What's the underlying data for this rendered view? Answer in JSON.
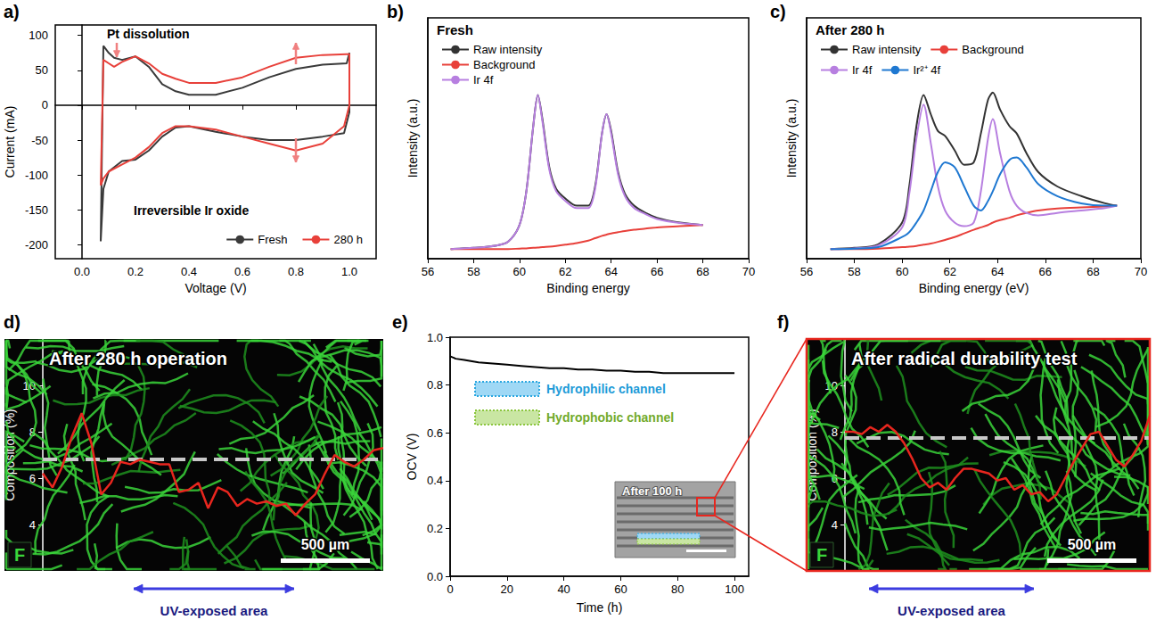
{
  "chart_data": [
    {
      "label": "a)",
      "type": "line",
      "x_label": "Voltage (V)",
      "y_label": "Current (mA)",
      "xlim": [
        -0.1,
        1.1
      ],
      "xticks": [
        {
          "value": 0,
          "label": "0.0"
        },
        0.2,
        0.4,
        0.6,
        0.8,
        {
          "value": 1,
          "label": "1.0"
        }
      ],
      "ylim": [
        -220,
        115
      ],
      "yticks": [
        -200,
        -150,
        -100,
        -50,
        0,
        50,
        100
      ],
      "legend": "lower right",
      "annotations": [
        "Pt dissolution",
        "Irreversible Ir oxide"
      ],
      "series": [
        {
          "name": "Fresh",
          "color": "#3a3a3a",
          "x": [
            0.07,
            0.08,
            0.1,
            0.12,
            0.15,
            0.2,
            0.25,
            0.3,
            0.35,
            0.4,
            0.5,
            0.6,
            0.7,
            0.8,
            0.9,
            0.99,
            1.0,
            1.0,
            0.98,
            0.9,
            0.8,
            0.7,
            0.6,
            0.5,
            0.4,
            0.35,
            0.3,
            0.25,
            0.2,
            0.15,
            0.1,
            0.08,
            0.07
          ],
          "values": [
            -195,
            85,
            75,
            68,
            65,
            70,
            55,
            30,
            20,
            15,
            15,
            25,
            40,
            52,
            58,
            60,
            75,
            -10,
            -40,
            -45,
            -50,
            -50,
            -45,
            -38,
            -30,
            -32,
            -45,
            -65,
            -78,
            -80,
            -95,
            -120,
            -195
          ]
        },
        {
          "name": "280 h",
          "color": "#e8403a",
          "x": [
            0.07,
            0.08,
            0.1,
            0.12,
            0.15,
            0.2,
            0.25,
            0.3,
            0.35,
            0.4,
            0.5,
            0.6,
            0.7,
            0.8,
            0.9,
            0.99,
            1.0,
            1.0,
            0.98,
            0.9,
            0.8,
            0.7,
            0.6,
            0.5,
            0.4,
            0.35,
            0.3,
            0.25,
            0.2,
            0.15,
            0.1,
            0.08,
            0.07
          ],
          "values": [
            -115,
            65,
            60,
            55,
            62,
            70,
            60,
            45,
            38,
            32,
            32,
            40,
            55,
            68,
            72,
            73,
            73,
            0,
            -30,
            -55,
            -65,
            -55,
            -45,
            -35,
            -30,
            -30,
            -40,
            -60,
            -75,
            -85,
            -95,
            -105,
            -115
          ]
        }
      ]
    },
    {
      "label": "b)",
      "type": "line",
      "title": "Fresh",
      "x_label": "Binding energy",
      "y_label": "Intensity (a.u.)",
      "xlim": [
        56,
        70
      ],
      "xticks": [
        56,
        58,
        60,
        62,
        64,
        66,
        68,
        70
      ],
      "ylim": [
        0,
        100
      ],
      "tick_labels": "x",
      "legend": "upper left",
      "x": [
        57,
        58,
        59,
        59.5,
        60,
        60.3,
        60.6,
        60.8,
        61,
        61.3,
        61.6,
        62,
        62.5,
        63,
        63.3,
        63.6,
        63.8,
        64,
        64.3,
        64.6,
        65,
        65.5,
        66,
        67,
        68
      ],
      "series": [
        {
          "name": "Raw intensity",
          "color": "#333333",
          "values": [
            4,
            4.5,
            5.5,
            7,
            14,
            28,
            55,
            68,
            58,
            38,
            29,
            25,
            22,
            22,
            30,
            52,
            60,
            53,
            36,
            27,
            22,
            19,
            17,
            15,
            14
          ]
        },
        {
          "name": "Background",
          "color": "#e8403a",
          "values": [
            4,
            4,
            4,
            4,
            4.2,
            4.3,
            4.5,
            4.6,
            4.8,
            5,
            5.3,
            5.8,
            6.5,
            7.5,
            8.5,
            9.5,
            10,
            10.5,
            11,
            11.5,
            12,
            12.5,
            13,
            13.5,
            14
          ]
        },
        {
          "name": "Ir 4f",
          "color": "#b77fe0",
          "values": [
            4,
            4.5,
            5.5,
            7,
            14,
            28,
            55,
            68,
            57,
            37,
            28,
            24,
            21,
            21,
            29,
            52,
            60,
            52,
            35,
            26,
            21,
            18.5,
            16.5,
            14.8,
            14
          ]
        }
      ]
    },
    {
      "label": "c)",
      "type": "line",
      "title": "After 280 h",
      "x_label": "Binding energy (eV)",
      "y_label": "Intensity (a.u.)",
      "xlim": [
        56,
        70
      ],
      "xticks": [
        56,
        58,
        60,
        62,
        64,
        66,
        68,
        70
      ],
      "ylim": [
        0,
        100
      ],
      "tick_labels": "x",
      "legend": "upper left",
      "x": [
        57,
        58,
        59,
        60,
        60.3,
        60.6,
        60.9,
        61.2,
        61.5,
        61.8,
        62.2,
        62.6,
        63,
        63.3,
        63.6,
        63.8,
        64.1,
        64.5,
        64.8,
        65.2,
        65.7,
        66.5,
        67.5,
        68.5,
        69
      ],
      "series": [
        {
          "name": "Raw intensity",
          "color": "#333333",
          "values": [
            4,
            4.5,
            6,
            15,
            30,
            55,
            68,
            60,
            53,
            51,
            45,
            39,
            40,
            52,
            66,
            69,
            62,
            55,
            52,
            44,
            36,
            30,
            26,
            23,
            22
          ]
        },
        {
          "name": "Background",
          "color": "#e8403a",
          "values": [
            4,
            4,
            4.2,
            4.8,
            5,
            5.3,
            5.8,
            6.3,
            7,
            7.8,
            9,
            10.5,
            12,
            13,
            14,
            15,
            16,
            17,
            18,
            19,
            20,
            20.8,
            21.3,
            21.7,
            22
          ]
        },
        {
          "name": "Ir 4f",
          "color": "#b77fe0",
          "values": [
            4,
            4.3,
            5.5,
            13,
            27,
            50,
            64,
            48,
            30,
            20,
            15,
            13.5,
            15,
            28,
            50,
            58,
            44,
            28,
            22,
            19,
            18,
            19,
            20,
            21,
            22
          ]
        },
        {
          "name": "Ir²⁺ 4f",
          "color": "#1f78d1",
          "values": [
            4,
            4.2,
            4.8,
            9,
            11,
            15,
            20,
            28,
            36,
            40,
            38,
            30,
            22,
            20,
            24,
            28,
            35,
            41,
            42,
            38,
            31,
            26,
            23,
            22,
            22
          ]
        }
      ]
    },
    {
      "label": "d)",
      "type": "line",
      "title": "After 280 h operation",
      "y_label": "Composition (%)",
      "ylim": [
        2,
        12
      ],
      "yticks": [
        4,
        6,
        8,
        10
      ],
      "tick_labels": "y",
      "reference": 6.8,
      "element": "F",
      "scale_bar": "500 µm",
      "region_label": "UV-exposed area",
      "series": [
        {
          "color": "#e8261e",
          "values": [
            6.2,
            5.6,
            6.5,
            7.8,
            8.8,
            7.5,
            5.3,
            5.8,
            6.7,
            6.6,
            6.8,
            6.7,
            6.6,
            6.6,
            5.4,
            5.5,
            5.8,
            4.7,
            5.6,
            5.4,
            4.8,
            5.1,
            4.9,
            5.0,
            4.8,
            4.9,
            4.4,
            4.9,
            5.3,
            6.2,
            7.0,
            6.7,
            6.5,
            6.8,
            7.2,
            7.3
          ]
        }
      ]
    },
    {
      "label": "e)",
      "type": "line",
      "x_label": "Time (h)",
      "y_label": "OCV (V)",
      "xlim": [
        0,
        105
      ],
      "xticks": [
        0,
        20,
        40,
        60,
        80,
        100
      ],
      "ylim": [
        0,
        1
      ],
      "yticks": [
        {
          "value": 0,
          "label": "0.0"
        },
        0.2,
        0.4,
        0.6,
        0.8,
        {
          "value": 1,
          "label": "1.0"
        }
      ],
      "annotations": [
        "Hydrophilic channel",
        "Hydrophobic channel"
      ],
      "inset_label": "After 100 h",
      "x": [
        0,
        2,
        5,
        10,
        15,
        20,
        25,
        30,
        35,
        40,
        45,
        50,
        55,
        60,
        65,
        70,
        75,
        80,
        85,
        90,
        95,
        100
      ],
      "series": [
        {
          "color": "#000000",
          "values": [
            0.92,
            0.91,
            0.905,
            0.895,
            0.89,
            0.885,
            0.88,
            0.875,
            0.87,
            0.87,
            0.865,
            0.865,
            0.86,
            0.86,
            0.855,
            0.855,
            0.85,
            0.85,
            0.85,
            0.85,
            0.85,
            0.85
          ]
        }
      ]
    },
    {
      "label": "f)",
      "type": "line",
      "title": "After radical durability test",
      "y_label": "Composition (%)",
      "ylim": [
        2,
        12
      ],
      "yticks": [
        4,
        6,
        8,
        10
      ],
      "tick_labels": "y",
      "reference": 7.75,
      "element": "F",
      "scale_bar": "500 µm",
      "region_label": "UV-exposed area",
      "series": [
        {
          "color": "#e8261e",
          "values": [
            8.0,
            8.0,
            7.9,
            8.2,
            8.0,
            8.3,
            8.0,
            7.5,
            6.8,
            6.0,
            5.6,
            5.8,
            5.5,
            6.0,
            6.4,
            6.4,
            6.3,
            6.2,
            5.9,
            6.0,
            5.5,
            5.7,
            5.3,
            5.4,
            5.0,
            5.3,
            6.0,
            6.7,
            7.3,
            7.9,
            8.0,
            7.4,
            6.8,
            6.5,
            7.0,
            7.6,
            8.7
          ]
        }
      ]
    }
  ]
}
